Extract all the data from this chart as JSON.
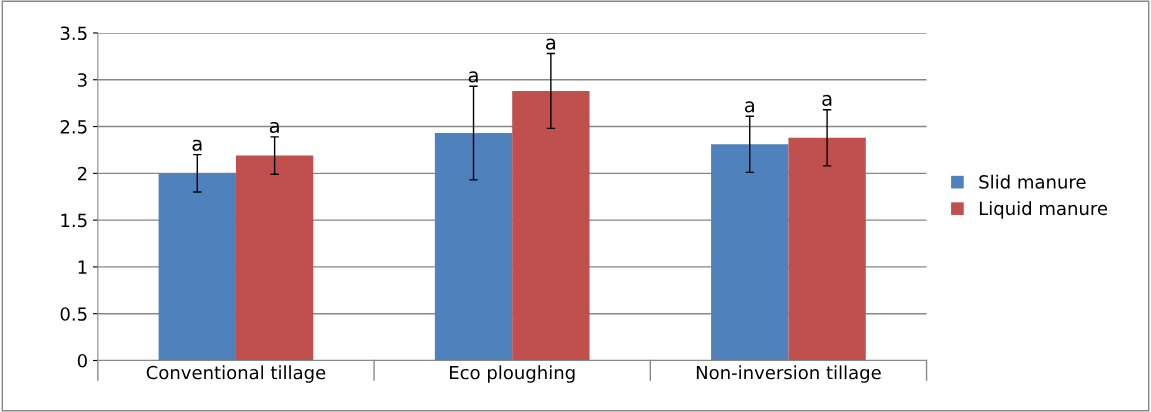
{
  "chart_data": {
    "type": "bar",
    "categories": [
      "Conventional tillage",
      "Eco ploughing",
      "Non-inversion tillage"
    ],
    "series": [
      {
        "name": "Slid manure",
        "color": "#4f81bd",
        "values": [
          2.0,
          2.43,
          2.31
        ],
        "errors": [
          0.2,
          0.5,
          0.3
        ],
        "value_labels": [
          "a",
          "a",
          "a"
        ]
      },
      {
        "name": "Liquid manure",
        "color": "#c0504d",
        "values": [
          2.19,
          2.88,
          2.38
        ],
        "errors": [
          0.2,
          0.4,
          0.3
        ],
        "value_labels": [
          "a",
          "a",
          "a"
        ]
      }
    ],
    "ylim": [
      0,
      3.5
    ],
    "yticks": [
      0,
      0.5,
      1,
      1.5,
      2,
      2.5,
      3,
      3.5
    ],
    "grid": "y",
    "legend": "right"
  }
}
